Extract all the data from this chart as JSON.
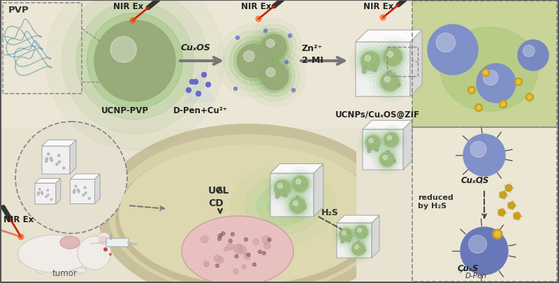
{
  "bg_color": "#ede8d8",
  "nir_label": "NIR Ex",
  "pvp_label": "PVP",
  "ucnp_pvp_label": "UCNP-PVP",
  "cuxos_label": "CuₓOS",
  "dpen_cu_label": "D-Pen+Cu²⁺",
  "zn_label": "Zn²⁺",
  "mi_label": "2-MI",
  "product_label": "UCNPs/CuₓOS@ZIF",
  "ucl_label": "UCL",
  "cd_label": "CD",
  "h2s_label": "H₂S",
  "tumor_label": "tumor",
  "nir_ex_bottom": "NIR Ex",
  "reduced_label": "reduced\nby H₂S",
  "dpen_label": "D-Pen",
  "cuxs_label": "CuₓS",
  "cuxos_sphere_label": "CuₓOS",
  "ucnp_color": "#8aaa7a",
  "sphere_color": "#7b8fc4",
  "gold_color": "#c8a020",
  "cell_color": "#d0c98a",
  "cell_wall_color": "#b8b080"
}
